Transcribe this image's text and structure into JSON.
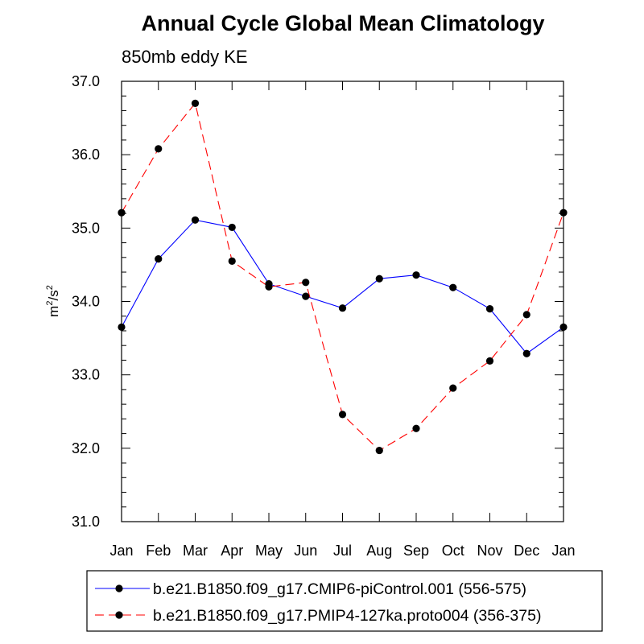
{
  "chart_data": {
    "type": "line",
    "title": "Annual Cycle Global Mean Climatology",
    "subtitle": "850mb eddy KE",
    "ylabel_base": "m",
    "ylabel_sup1": "2",
    "ylabel_mid": "/s",
    "ylabel_sup2": "2",
    "ylim": [
      31.0,
      37.0
    ],
    "yticks": [
      "31.0",
      "32.0",
      "33.0",
      "34.0",
      "35.0",
      "36.0",
      "37.0"
    ],
    "categories": [
      "Jan",
      "Feb",
      "Mar",
      "Apr",
      "May",
      "Jun",
      "Jul",
      "Aug",
      "Sep",
      "Oct",
      "Nov",
      "Dec",
      "Jan"
    ],
    "series": [
      {
        "name": "b.e21.B1850.f09_g17.CMIP6-piControl.001 (556-575)",
        "color": "#0000ff",
        "dash": "solid",
        "values": [
          33.65,
          34.58,
          35.11,
          35.01,
          34.24,
          34.07,
          33.91,
          34.31,
          34.36,
          34.19,
          33.9,
          33.29,
          33.65
        ]
      },
      {
        "name": "b.e21.B1850.f09_g17.PMIP4-127ka.proto004 (356-375)",
        "color": "#ff0000",
        "dash": "dashed",
        "values": [
          35.21,
          36.08,
          36.7,
          34.55,
          34.2,
          34.26,
          32.46,
          31.97,
          32.27,
          32.82,
          33.19,
          33.82,
          35.21
        ]
      }
    ]
  }
}
